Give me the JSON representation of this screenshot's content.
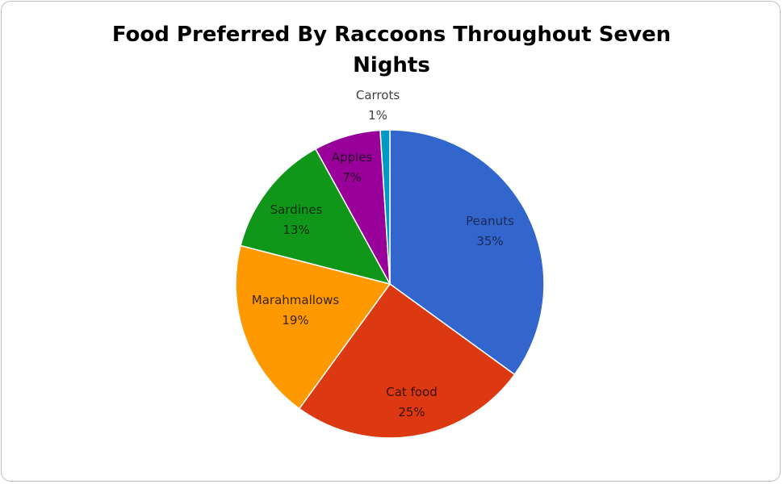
{
  "chart_data": {
    "type": "pie",
    "title_lines": [
      "Food Preferred By Raccoons Throughout  Seven",
      "Nights"
    ],
    "slices": [
      {
        "label": "Peanuts",
        "value": 35,
        "value_label": "35%",
        "color": "#3366cc",
        "label_color": "#1a2a55"
      },
      {
        "label": "Cat food",
        "value": 25,
        "value_label": "25%",
        "color": "#dc3912",
        "label_color": "#3a1005"
      },
      {
        "label": "Marahmallows",
        "value": 19,
        "value_label": "19%",
        "color": "#ff9900",
        "label_color": "#3a2400"
      },
      {
        "label": "Sardines",
        "value": 13,
        "value_label": "13%",
        "color": "#109618",
        "label_color": "#062e08"
      },
      {
        "label": "Apples",
        "value": 7,
        "value_label": "7%",
        "color": "#990099",
        "label_color": "#2a002a"
      },
      {
        "label": "Carrots",
        "value": 1,
        "value_label": "1%",
        "color": "#0099c6",
        "label_color": "#404040"
      }
    ],
    "start_angle_deg": 0,
    "direction": "clockwise"
  }
}
